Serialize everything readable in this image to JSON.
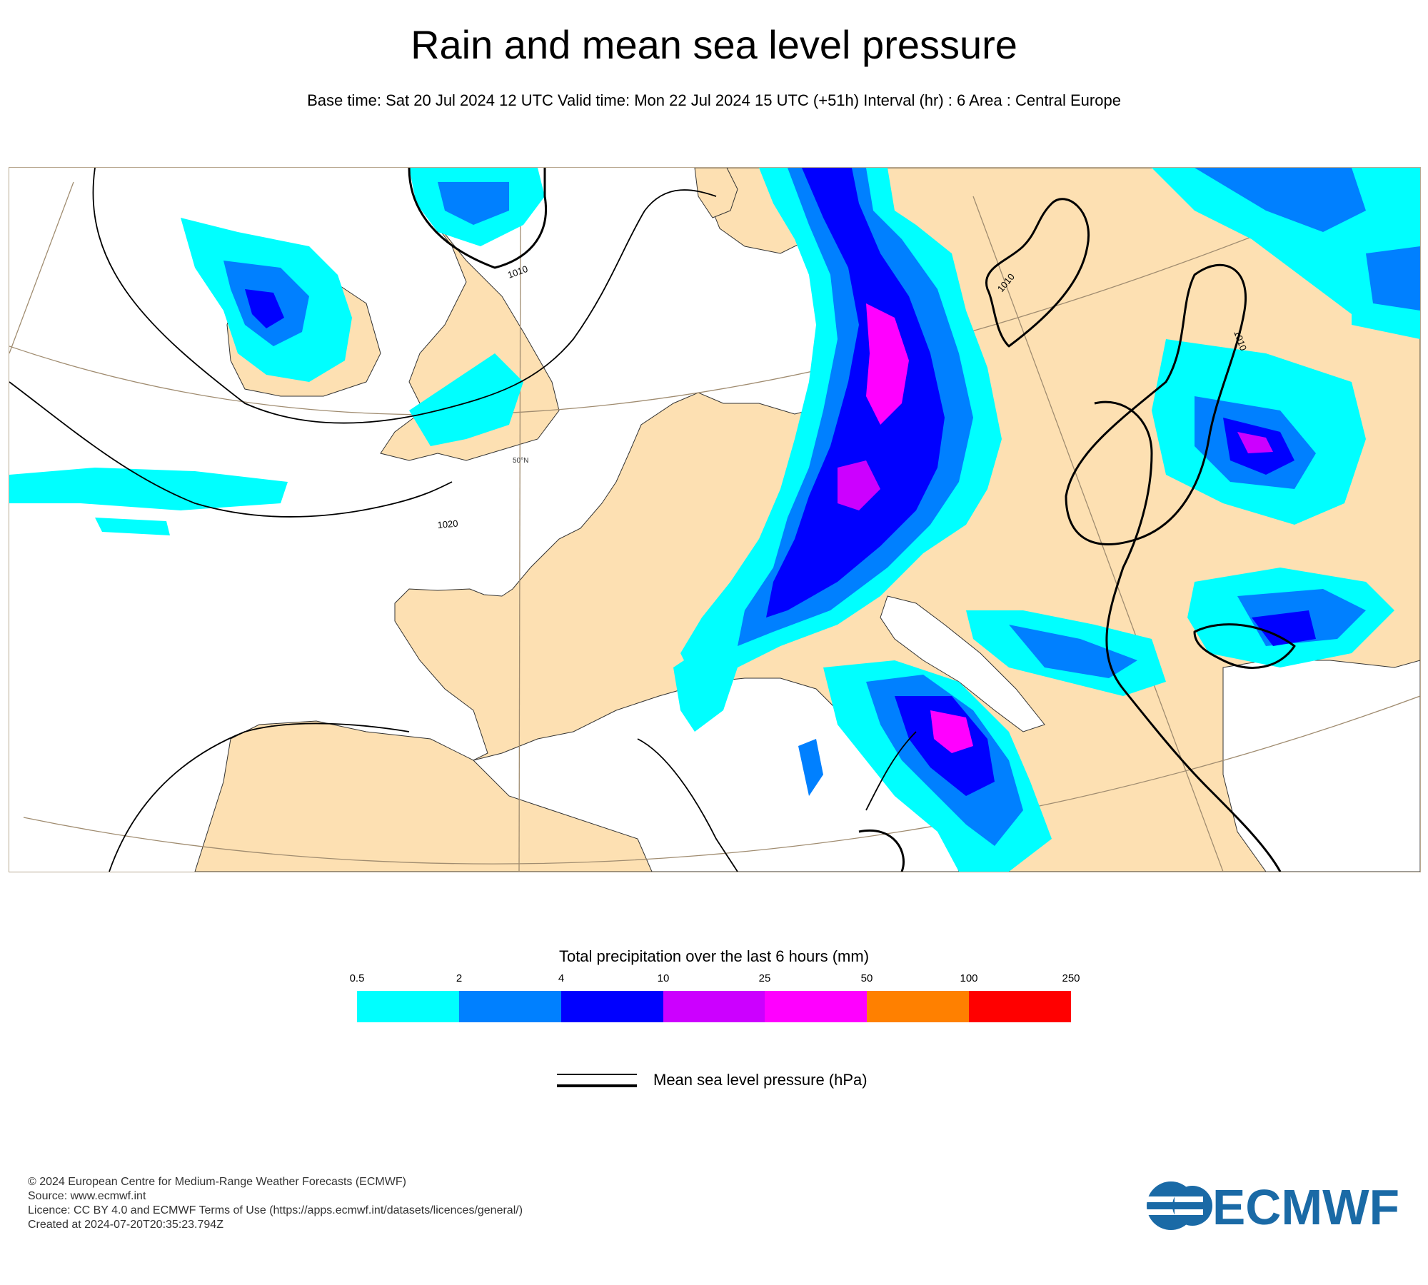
{
  "header": {
    "title": "Rain and mean sea level pressure",
    "subtitle": "Base time: Sat 20 Jul 2024 12 UTC Valid time: Mon 22 Jul 2024 15 UTC (+51h) Interval (hr) : 6 Area : Central Europe"
  },
  "map": {
    "latitude_label": "50°N",
    "isobar_labels": [
      "1010",
      "1020",
      "1010",
      "1010"
    ],
    "colors": {
      "land": "#fde0b2",
      "sea": "#ffffff",
      "isobar": "#000000",
      "graticule": "#a08c70"
    }
  },
  "colorbar": {
    "title": "Total precipitation over the last 6 hours (mm)",
    "ticks": [
      "0.5",
      "2",
      "4",
      "10",
      "25",
      "50",
      "100",
      "250"
    ],
    "colors": [
      "#00ffff",
      "#0080ff",
      "#0000ff",
      "#cc00ff",
      "#ff00ff",
      "#ff8000",
      "#ff0000"
    ]
  },
  "legend": {
    "pressure_label": "Mean sea level pressure (hPa)"
  },
  "footer": {
    "lines": [
      "© 2024 European Centre for Medium-Range Weather Forecasts (ECMWF)",
      "Source: www.ecmwf.int",
      "Licence: CC BY 4.0 and ECMWF Terms of Use (https://apps.ecmwf.int/datasets/licences/general/)",
      "Created at 2024-07-20T20:35:23.794Z"
    ],
    "logo_text": "ECMWF",
    "logo_color": "#1a6aa6"
  }
}
